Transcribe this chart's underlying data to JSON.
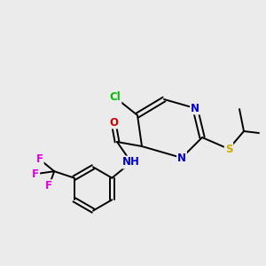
{
  "background_color": "#ebebeb",
  "atom_colors": {
    "C": "#000000",
    "N": "#0000cc",
    "O": "#cc0000",
    "S": "#ccaa00",
    "Cl": "#00bb00",
    "F": "#dd00dd",
    "H": "#000000"
  },
  "bond_color": "#000000",
  "bond_width": 1.4,
  "font_size": 8.5
}
